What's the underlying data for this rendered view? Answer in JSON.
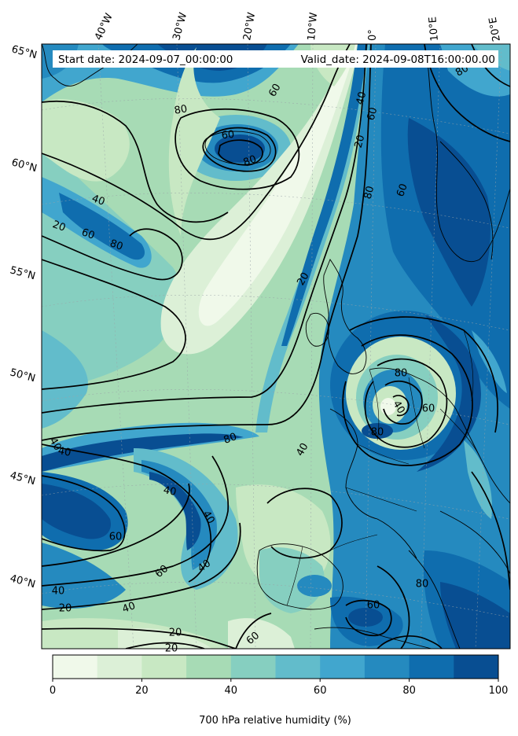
{
  "header": {
    "start_date": "Start date: 2024-09-07_00:00:00",
    "valid_date": "Valid_date: 2024-09-08T16:00:00.00"
  },
  "map": {
    "variable": "700 hPa relative humidity",
    "lon_labels": [
      "40°W",
      "30°W",
      "20°W",
      "10°W",
      "0°",
      "10°E",
      "20°E"
    ],
    "lat_labels": [
      "65°N",
      "60°N",
      "55°N",
      "50°N",
      "45°N",
      "40°N"
    ],
    "contour_levels": [
      20,
      40,
      60,
      80
    ],
    "contour_labels": [
      {
        "text": "80"
      },
      {
        "text": "60"
      },
      {
        "text": "60"
      },
      {
        "text": "80"
      },
      {
        "text": "40"
      },
      {
        "text": "20"
      },
      {
        "text": "60"
      },
      {
        "text": "80"
      },
      {
        "text": "20"
      },
      {
        "text": "40"
      },
      {
        "text": "60"
      },
      {
        "text": "80"
      },
      {
        "text": "20"
      },
      {
        "text": "80"
      },
      {
        "text": "40"
      },
      {
        "text": "80"
      },
      {
        "text": "60"
      },
      {
        "text": "60"
      },
      {
        "text": "40"
      },
      {
        "text": "40"
      },
      {
        "text": "80"
      },
      {
        "text": "40"
      },
      {
        "text": "40"
      },
      {
        "text": "60"
      },
      {
        "text": "60"
      },
      {
        "text": "40"
      },
      {
        "text": "40"
      },
      {
        "text": "40"
      },
      {
        "text": "20"
      },
      {
        "text": "20"
      },
      {
        "text": "20"
      },
      {
        "text": "60"
      },
      {
        "text": "80"
      },
      {
        "text": "40"
      },
      {
        "text": "60"
      },
      {
        "text": "80"
      }
    ]
  },
  "colorbar": {
    "title": "700 hPa relative humidity (%)",
    "ticks": [
      "0",
      "20",
      "40",
      "60",
      "80",
      "100"
    ],
    "bins": [
      {
        "from": 0,
        "to": 10,
        "color": "#f0f9ea"
      },
      {
        "from": 10,
        "to": 20,
        "color": "#dcf0d7"
      },
      {
        "from": 20,
        "to": 30,
        "color": "#c8e8c3"
      },
      {
        "from": 30,
        "to": 40,
        "color": "#a7dbb5"
      },
      {
        "from": 40,
        "to": 50,
        "color": "#86cfc0"
      },
      {
        "from": 50,
        "to": 60,
        "color": "#62bccb"
      },
      {
        "from": 60,
        "to": 70,
        "color": "#41a6ce"
      },
      {
        "from": 70,
        "to": 80,
        "color": "#258abf"
      },
      {
        "from": 80,
        "to": 90,
        "color": "#0f6dae"
      },
      {
        "from": 90,
        "to": 100,
        "color": "#084e92"
      }
    ]
  }
}
